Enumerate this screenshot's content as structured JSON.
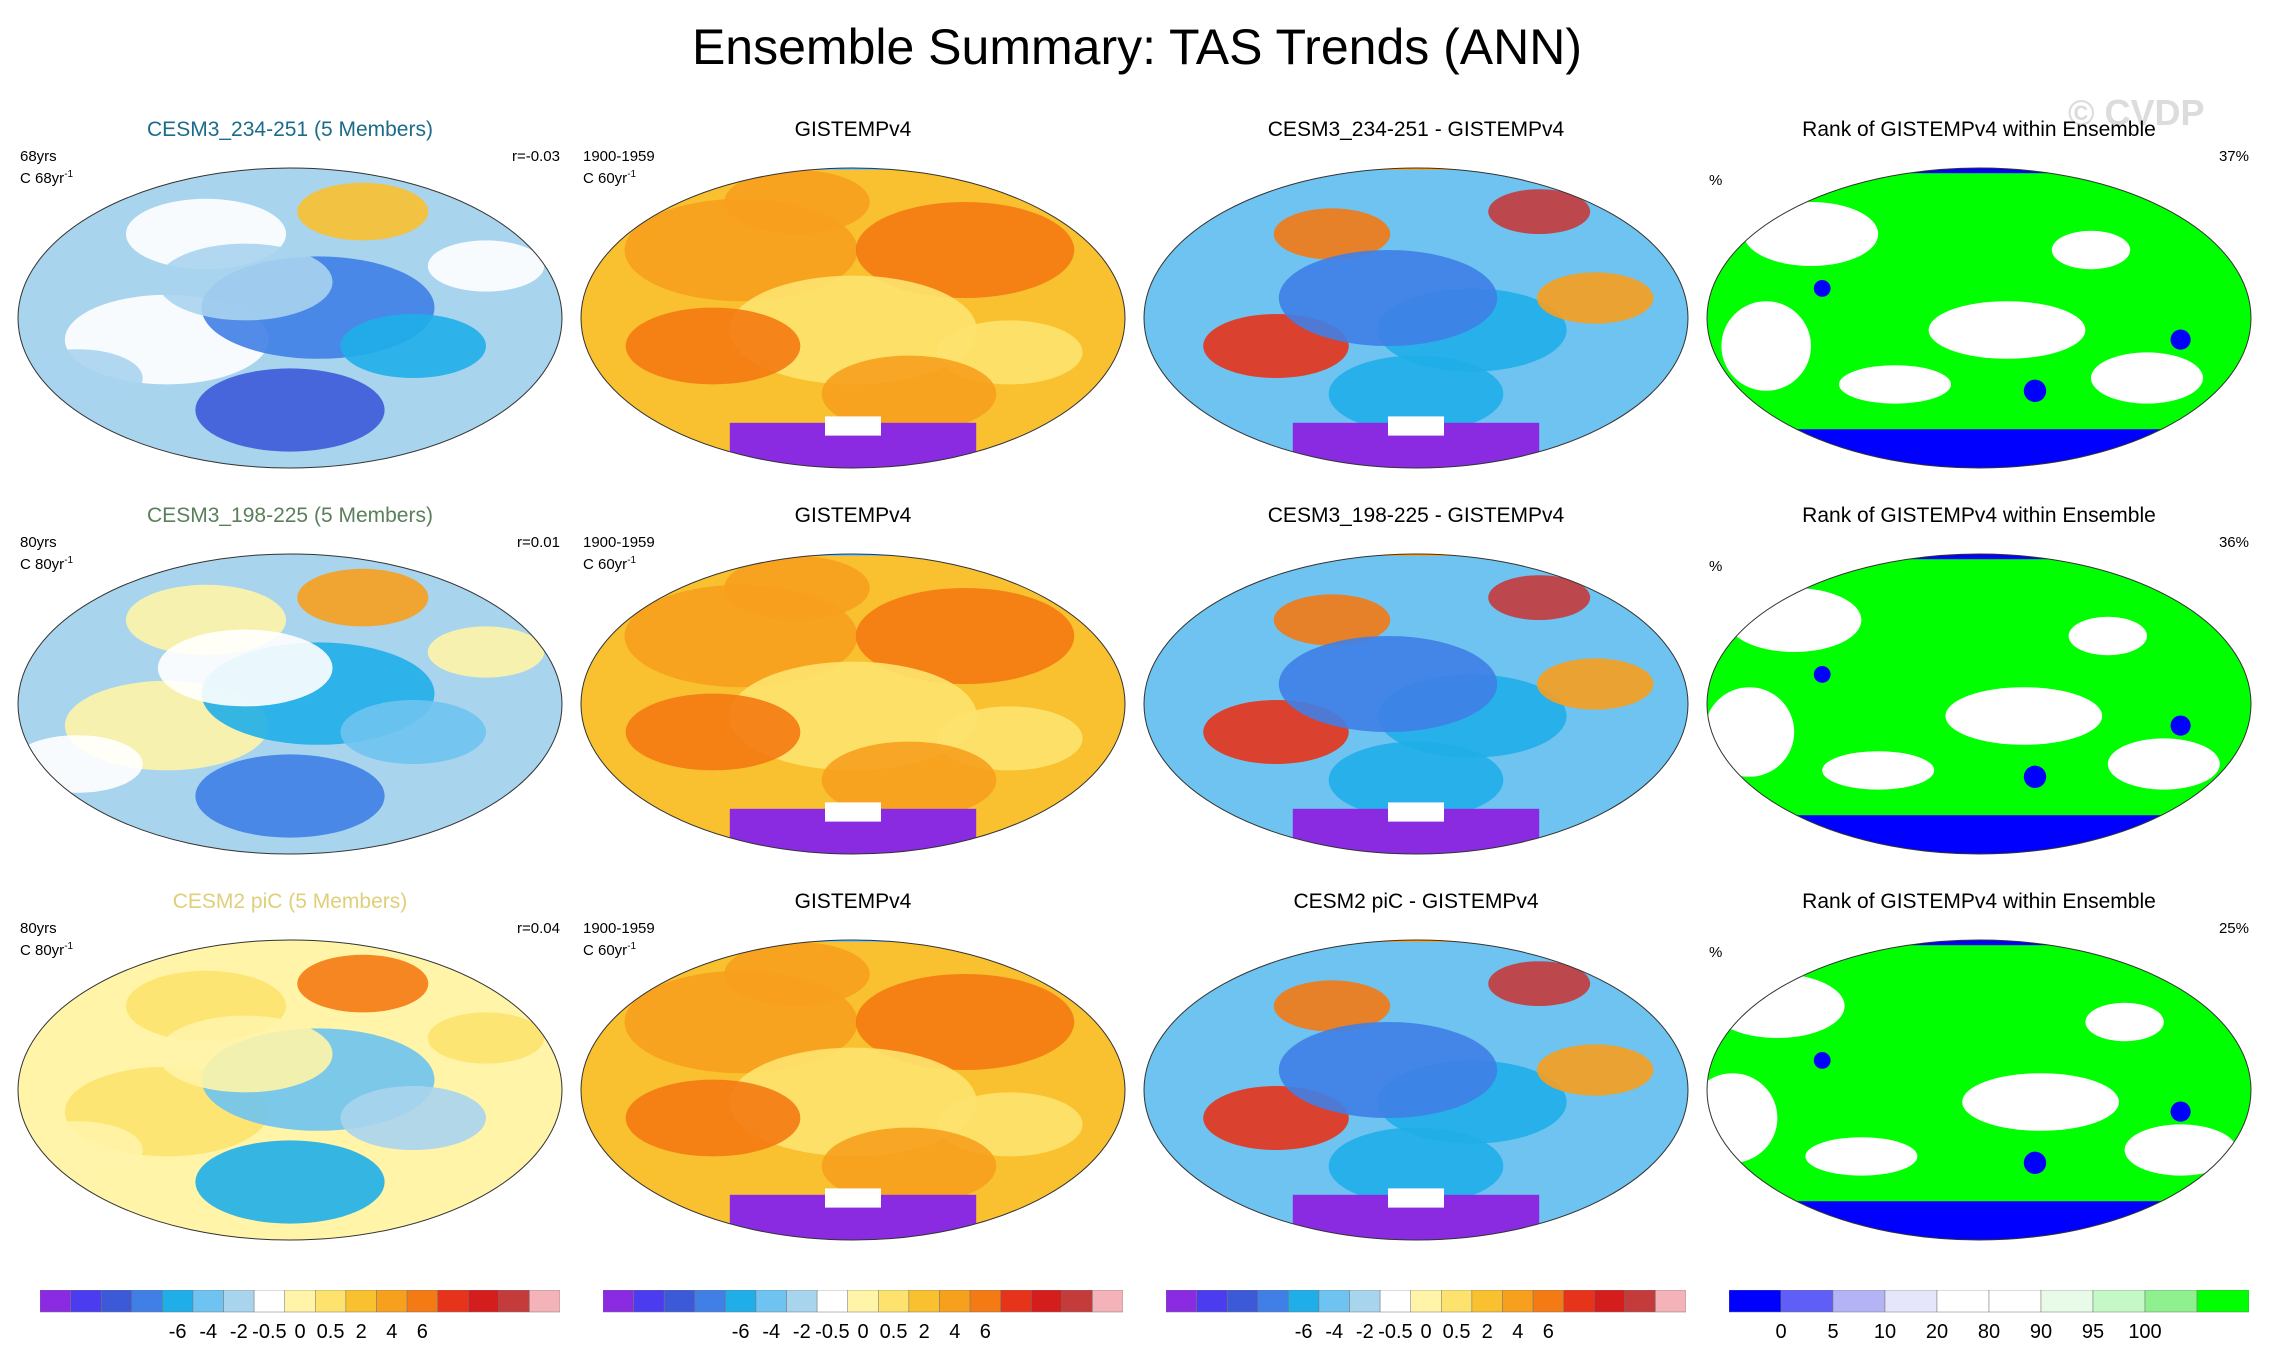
{
  "title": "Ensemble Summary: TAS Trends (ANN)",
  "watermark": "© CVDP",
  "colors": {
    "trend_scale": [
      "#8a2be2",
      "#4b3cf0",
      "#3c5ad8",
      "#3f7fe6",
      "#1faee8",
      "#6ec3f0",
      "#a8d4ee",
      "#ffffff",
      "#fff4a8",
      "#fde36e",
      "#f9c12f",
      "#f7a01e",
      "#f47a13",
      "#e6341a",
      "#d41e1e",
      "#c43b3b",
      "#f4b3b8"
    ],
    "rank_scale": [
      "#0000ff",
      "#5f5ff7",
      "#b3b3f5",
      "#e5e5fb",
      "#ffffff",
      "#ffffff",
      "#e8fbe8",
      "#c6f7c6",
      "#8ef08e",
      "#00ff00"
    ]
  },
  "rows": [
    {
      "model": {
        "title": "CESM3_234-251 (5 Members)",
        "title_color": "#1b6b8a",
        "years": "68yrs",
        "units_base": "C 68yr",
        "units_sup": "-1",
        "corr": "r=-0.03",
        "base": 5
      },
      "obs": {
        "title": "GISTEMPv4",
        "period": "1900-1959",
        "units_base": "C 60yr",
        "units_sup": "-1"
      },
      "diff": {
        "title": "CESM3_234-251 - GISTEMPv4"
      },
      "rank": {
        "title": "Rank of GISTEMPv4 within Ensemble",
        "unit": "%",
        "pct": "37%"
      }
    },
    {
      "model": {
        "title": "CESM3_198-225 (5 Members)",
        "title_color": "#5a7f5a",
        "years": "80yrs",
        "units_base": "C 80yr",
        "units_sup": "-1",
        "corr": "r=0.01",
        "base": 6
      },
      "obs": {
        "title": "GISTEMPv4",
        "period": "1900-1959",
        "units_base": "C 60yr",
        "units_sup": "-1"
      },
      "diff": {
        "title": "CESM3_198-225 - GISTEMPv4"
      },
      "rank": {
        "title": "Rank of GISTEMPv4 within Ensemble",
        "unit": "%",
        "pct": "36%"
      }
    },
    {
      "model": {
        "title": "CESM2 piC (5 Members)",
        "title_color": "#e0cf7a",
        "years": "80yrs",
        "units_base": "C 80yr",
        "units_sup": "-1",
        "corr": "r=0.04",
        "base": 7
      },
      "obs": {
        "title": "GISTEMPv4",
        "period": "1900-1959",
        "units_base": "C 60yr",
        "units_sup": "-1"
      },
      "diff": {
        "title": "CESM2 piC - GISTEMPv4"
      },
      "rank": {
        "title": "Rank of GISTEMPv4 within Ensemble",
        "unit": "%",
        "pct": "25%"
      }
    }
  ],
  "colorbars": {
    "trend_labels": [
      "-6",
      "-4",
      "-2",
      "-0.5",
      "0",
      "0.5",
      "2",
      "4",
      "6"
    ],
    "rank_labels": [
      "0",
      "5",
      "10",
      "20",
      "80",
      "90",
      "95",
      "100"
    ]
  },
  "chart_data": [
    {
      "type": "heatmap",
      "title": "CESM3_234-251 (5 Members)",
      "subtitle": "68yrs C 68yr-1",
      "annotation": "r=-0.03",
      "pattern_score": -0.03
    },
    {
      "type": "heatmap",
      "title": "GISTEMPv4",
      "subtitle": "1900-1959 C 60yr-1"
    },
    {
      "type": "heatmap",
      "title": "CESM3_234-251 - GISTEMPv4"
    },
    {
      "type": "heatmap",
      "title": "Rank of GISTEMPv4 within Ensemble",
      "annotation": "37%",
      "value_percent": 37
    },
    {
      "type": "heatmap",
      "title": "CESM3_198-225 (5 Members)",
      "subtitle": "80yrs C 80yr-1",
      "annotation": "r=0.01",
      "pattern_score": 0.01
    },
    {
      "type": "heatmap",
      "title": "GISTEMPv4",
      "subtitle": "1900-1959 C 60yr-1"
    },
    {
      "type": "heatmap",
      "title": "CESM3_198-225 - GISTEMPv4"
    },
    {
      "type": "heatmap",
      "title": "Rank of GISTEMPv4 within Ensemble",
      "annotation": "36%",
      "value_percent": 36
    },
    {
      "type": "heatmap",
      "title": "CESM2 piC (5 Members)",
      "subtitle": "80yrs C 80yr-1",
      "annotation": "r=0.04",
      "pattern_score": 0.04
    },
    {
      "type": "heatmap",
      "title": "GISTEMPv4",
      "subtitle": "1900-1959 C 60yr-1"
    },
    {
      "type": "heatmap",
      "title": "CESM2 piC - GISTEMPv4"
    },
    {
      "type": "heatmap",
      "title": "Rank of GISTEMPv4 within Ensemble",
      "annotation": "25%",
      "value_percent": 25
    }
  ]
}
